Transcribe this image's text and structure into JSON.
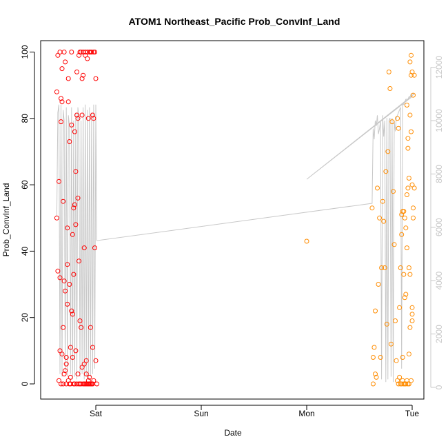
{
  "chart_data": {
    "type": "scatter",
    "title": "ATOM1 Northeast_Pacific Prob_ConvInf_Land",
    "xlabel": "Date",
    "ylabel": "Prob_ConvInf_Land",
    "x_ticks": [
      "Sat",
      "Sun",
      "Mon",
      "Tue"
    ],
    "y_ticks": [
      "0",
      "20",
      "40",
      "60",
      "80",
      "100"
    ],
    "y_lim": [
      0,
      100
    ],
    "y2_ticks": [
      "0",
      "2000",
      "4000",
      "6000",
      "8000",
      "10000",
      "12000"
    ],
    "y2_lim": [
      0,
      12000
    ],
    "x_unit": "days from Sat 00:00 (Sat=0, Sun=1, Mon=2, Tue=3)",
    "x_lim": [
      -0.4,
      3.07
    ],
    "colors": {
      "series_1": "#ff0000",
      "series_2": "#ff8c00",
      "line": "#c8c8c8"
    },
    "series": [
      {
        "color": "#ff0000",
        "x": [
          -0.37,
          -0.37,
          -0.36,
          -0.36,
          -0.35,
          -0.35,
          -0.34,
          -0.34,
          -0.34,
          -0.33,
          -0.33,
          -0.33,
          -0.32,
          -0.32,
          -0.32,
          -0.31,
          -0.31,
          -0.31,
          -0.3,
          -0.3,
          -0.3,
          -0.29,
          -0.29,
          -0.29,
          -0.28,
          -0.28,
          -0.28,
          -0.27,
          -0.27,
          -0.27,
          -0.26,
          -0.26,
          -0.26,
          -0.25,
          -0.25,
          -0.25,
          -0.24,
          -0.24,
          -0.24,
          -0.23,
          -0.23,
          -0.23,
          -0.22,
          -0.22,
          -0.22,
          -0.21,
          -0.21,
          -0.21,
          -0.2,
          -0.2,
          -0.2,
          -0.19,
          -0.19,
          -0.19,
          -0.18,
          -0.18,
          -0.18,
          -0.17,
          -0.17,
          -0.17,
          -0.16,
          -0.16,
          -0.16,
          -0.15,
          -0.15,
          -0.15,
          -0.14,
          -0.14,
          -0.14,
          -0.13,
          -0.13,
          -0.13,
          -0.12,
          -0.12,
          -0.12,
          -0.11,
          -0.11,
          -0.11,
          -0.1,
          -0.1,
          -0.1,
          -0.09,
          -0.09,
          -0.09,
          -0.08,
          -0.08,
          -0.08,
          -0.07,
          -0.07,
          -0.07,
          -0.06,
          -0.06,
          -0.06,
          -0.05,
          -0.05,
          -0.05,
          -0.04,
          -0.04,
          -0.04,
          -0.03,
          -0.03,
          -0.03,
          -0.02,
          -0.02,
          -0.02,
          -0.01,
          -0.01,
          0.0,
          0.0,
          0.01
        ],
        "y": [
          50,
          88,
          34,
          99,
          1,
          61,
          10,
          100,
          32,
          86,
          79,
          0,
          9,
          95,
          85,
          55,
          17,
          0,
          100,
          31,
          3,
          4,
          28,
          97,
          8,
          0,
          6,
          47,
          36,
          24,
          1,
          85,
          92,
          0,
          73,
          30,
          0,
          2,
          11,
          22,
          78,
          100,
          8,
          45,
          21,
          0,
          33,
          53,
          54,
          0,
          76,
          48,
          10,
          64,
          0,
          81,
          94,
          56,
          3,
          80,
          99,
          37,
          0,
          19,
          100,
          0,
          17,
          100,
          0,
          92,
          5,
          81,
          0,
          100,
          93,
          0,
          41,
          6,
          0,
          100,
          99,
          3,
          0,
          7,
          98,
          0,
          100,
          80,
          1,
          0,
          100,
          2,
          0,
          100,
          0,
          17,
          0,
          100,
          0,
          81,
          11,
          0,
          100,
          1,
          80,
          41,
          100,
          7,
          92,
          0
        ]
      },
      {
        "color": "#ff8c00",
        "x": [
          2.0,
          2.62,
          2.63,
          2.63,
          2.64,
          2.65,
          2.65,
          2.66,
          2.67,
          2.68,
          2.69,
          2.7,
          2.71,
          2.72,
          2.73,
          2.74,
          2.75,
          2.76,
          2.77,
          2.78,
          2.79,
          2.8,
          2.81,
          2.82,
          2.83,
          2.84,
          2.85,
          2.86,
          2.87,
          2.88,
          2.89,
          2.9,
          2.91,
          2.92,
          2.93,
          2.94,
          2.95,
          2.96,
          2.97,
          2.98,
          2.99,
          3.0,
          3.0,
          3.01,
          3.01,
          3.02,
          3.02,
          2.86,
          2.87,
          2.88,
          2.89,
          2.9,
          2.91,
          2.92,
          2.93,
          2.94,
          2.95,
          2.96,
          2.97,
          2.98,
          2.99,
          3.0,
          2.9,
          2.91,
          2.92,
          2.93,
          2.94,
          2.95,
          2.96,
          2.97,
          2.98,
          2.99,
          3.0,
          3.01,
          2.95,
          2.96,
          2.97,
          2.98,
          2.99,
          3.0
        ],
        "y": [
          43,
          53,
          8,
          0,
          11,
          3,
          22,
          2,
          59,
          30,
          50,
          8,
          35,
          55,
          49,
          35,
          64,
          18,
          70,
          94,
          89,
          12,
          79,
          58,
          42,
          19,
          7,
          1,
          0,
          2,
          0,
          0,
          1,
          33,
          26,
          27,
          57,
          71,
          9,
          97,
          99,
          21,
          19,
          50,
          53,
          59,
          93,
          80,
          77,
          23,
          35,
          51,
          8,
          0,
          0,
          0,
          1,
          0,
          0,
          17,
          1,
          23,
          45,
          52,
          52,
          50,
          47,
          41,
          59,
          35,
          33,
          76,
          94,
          87,
          84,
          74,
          62,
          81,
          93,
          60
        ]
      }
    ],
    "line": {
      "axis": "right",
      "color": "#c8c8c8",
      "x": [
        -0.37,
        -0.36,
        -0.35,
        -0.34,
        -0.33,
        -0.32,
        -0.31,
        -0.3,
        -0.29,
        -0.28,
        -0.27,
        -0.26,
        -0.25,
        -0.24,
        -0.23,
        -0.22,
        -0.21,
        -0.2,
        -0.19,
        -0.18,
        -0.17,
        -0.16,
        -0.15,
        -0.14,
        -0.13,
        -0.12,
        -0.11,
        -0.1,
        -0.09,
        -0.08,
        -0.07,
        -0.06,
        -0.05,
        -0.04,
        -0.03,
        -0.02,
        -0.01,
        0.0,
        0.01,
        2.62,
        2.63,
        2.64,
        2.65,
        2.66,
        2.67,
        2.68,
        2.69,
        2.7,
        2.71,
        2.72,
        2.73,
        2.74,
        2.75,
        2.76,
        2.77,
        2.78,
        2.79,
        2.8,
        2.81,
        2.82,
        2.83,
        2.84,
        2.85,
        2.86,
        2.87,
        2.88,
        2.89,
        2.9,
        2.91,
        2.92,
        2.93,
        2.94,
        2.95,
        2.96,
        2.97,
        2.98,
        2.99,
        3.0,
        3.01,
        3.02,
        2.0,
        3.0
      ],
      "y": [
        6400,
        10300,
        10600,
        500,
        10600,
        400,
        10400,
        10000,
        600,
        10500,
        400,
        10200,
        9800,
        500,
        10500,
        300,
        10000,
        400,
        10300,
        300,
        10500,
        10000,
        400,
        10000,
        500,
        10500,
        300,
        10600,
        400,
        10400,
        300,
        10500,
        400,
        10300,
        500,
        10600,
        700,
        10600,
        5500,
        6900,
        9700,
        9300,
        10000,
        9800,
        10200,
        9500,
        9700,
        10000,
        300,
        10200,
        9400,
        10000,
        200,
        10100,
        300,
        10000,
        10100,
        400,
        10100,
        200,
        10000,
        9600,
        10100,
        10200,
        10300,
        10400,
        10500,
        700,
        10600,
        10600,
        10700,
        10800,
        10800,
        10800,
        10900,
        10900,
        11000,
        11000,
        11000,
        11000,
        7800,
        10900
      ]
    }
  }
}
